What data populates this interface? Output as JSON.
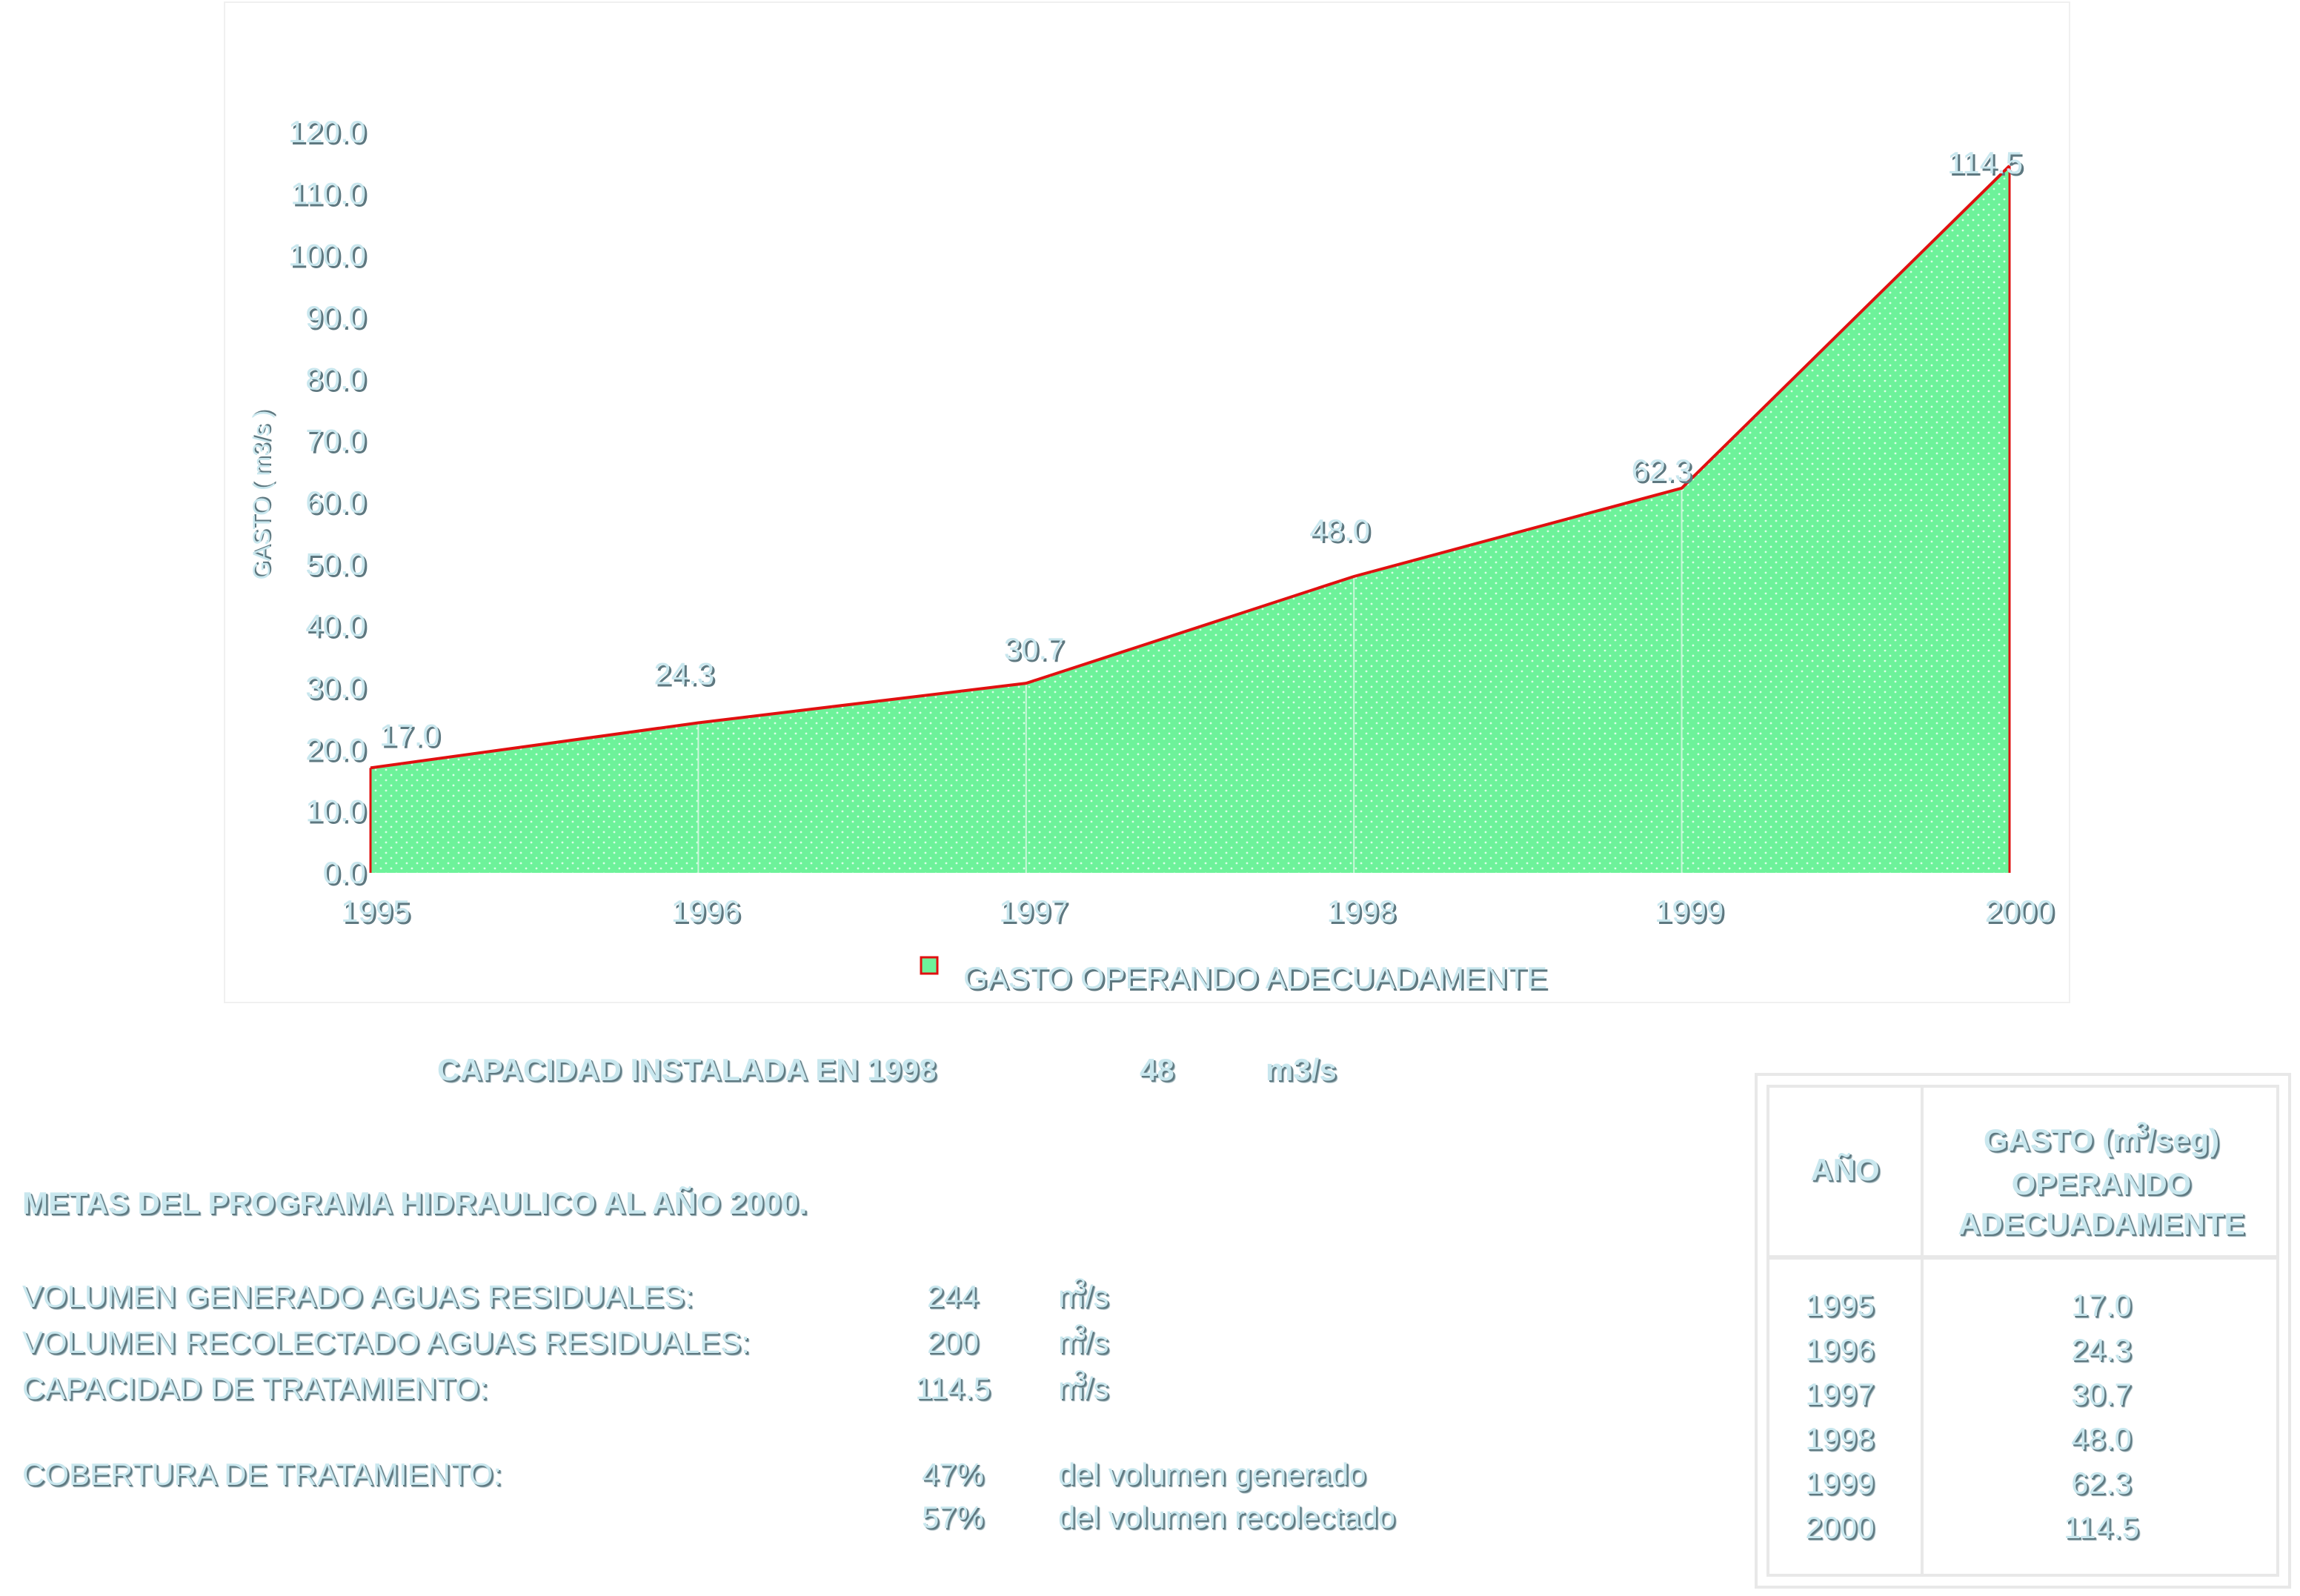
{
  "chart_data": {
    "type": "area",
    "x": [
      "1995",
      "1996",
      "1997",
      "1998",
      "1999",
      "2000"
    ],
    "series": [
      {
        "name": "GASTO OPERANDO ADECUADAMENTE",
        "values": [
          17.0,
          24.3,
          30.7,
          48.0,
          62.3,
          114.5
        ]
      }
    ],
    "data_labels": [
      "17.0",
      "24.3",
      "30.7",
      "48.0",
      "62.3",
      "114.5"
    ],
    "ylabel": "GASTO ( m3/s )",
    "ylim": [
      0,
      120
    ],
    "yticks": [
      "0.0",
      "10.0",
      "20.0",
      "30.0",
      "40.0",
      "50.0",
      "60.0",
      "70.0",
      "80.0",
      "90.0",
      "100.0",
      "110.0",
      "120.0"
    ],
    "legend_position": "bottom",
    "colors": {
      "fill": "#6df29a",
      "line": "#e01010",
      "label": "#c9e7ee"
    },
    "grid": false
  },
  "capacity": {
    "label": "CAPACIDAD INSTALADA EN 1998",
    "value": "48",
    "unit": "m3/s"
  },
  "goals": {
    "title": "METAS DEL PROGRAMA HIDRAULICO AL AÑO  2000.",
    "rows": [
      {
        "label": "VOLUMEN GENERADO AGUAS RESIDUALES:",
        "value": "244",
        "unit_base": "m",
        "unit_sup": "3",
        "unit_tail": "/s"
      },
      {
        "label": "VOLUMEN RECOLECTADO AGUAS RESIDUALES:",
        "value": "200",
        "unit_base": "m",
        "unit_sup": "3",
        "unit_tail": "/s"
      },
      {
        "label": "CAPACIDAD DE TRATAMIENTO:",
        "value": "114.5",
        "unit_base": "m",
        "unit_sup": "3",
        "unit_tail": "/s"
      }
    ],
    "coverage_label": "COBERTURA DE TRATAMIENTO:",
    "coverage": [
      {
        "value": "47%",
        "text": "del  volumen  generado"
      },
      {
        "value": "57%",
        "text": "del  volumen  recolectado"
      }
    ]
  },
  "table": {
    "col1_header": "AÑO",
    "col2_header_line1_pre": "GASTO (m",
    "col2_header_line1_sup": "3",
    "col2_header_line1_post": "/seg)",
    "col2_header_line2": "OPERANDO",
    "col2_header_line3": "ADECUADAMENTE",
    "rows": [
      {
        "year": "1995",
        "value": "17.0"
      },
      {
        "year": "1996",
        "value": "24.3"
      },
      {
        "year": "1997",
        "value": "30.7"
      },
      {
        "year": "1998",
        "value": "48.0"
      },
      {
        "year": "1999",
        "value": "62.3"
      },
      {
        "year": "2000",
        "value": "114.5"
      }
    ]
  }
}
